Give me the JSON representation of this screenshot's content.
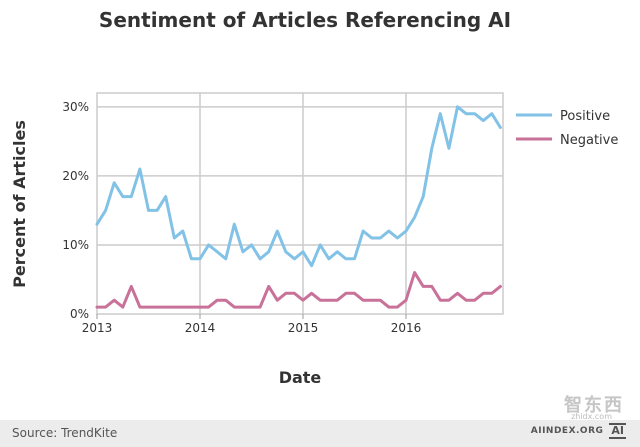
{
  "chart_data": {
    "type": "line",
    "title": "Sentiment of Articles Referencing AI",
    "xlabel": "Date",
    "ylabel": "Percent of Articles",
    "x_start_year": 2013,
    "x_ticks": [
      "2013",
      "2014",
      "2015",
      "2016"
    ],
    "y_ticks": [
      "0%",
      "10%",
      "20%",
      "30%"
    ],
    "ylim": [
      0,
      32
    ],
    "grid": true,
    "legend_position": "right",
    "series": [
      {
        "name": "Positive",
        "color": "#82c2e6",
        "values": [
          13,
          15,
          19,
          17,
          17,
          21,
          15,
          15,
          17,
          11,
          12,
          8,
          8,
          10,
          9,
          8,
          13,
          9,
          10,
          8,
          9,
          12,
          9,
          8,
          9,
          7,
          10,
          8,
          9,
          8,
          8,
          12,
          11,
          11,
          12,
          11,
          12,
          14,
          17,
          24,
          29,
          24,
          30,
          29,
          29,
          28,
          29,
          27
        ]
      },
      {
        "name": "Negative",
        "color": "#c8729a",
        "values": [
          1,
          1,
          2,
          1,
          4,
          1,
          1,
          1,
          1,
          1,
          1,
          1,
          1,
          1,
          2,
          2,
          1,
          1,
          1,
          1,
          4,
          2,
          3,
          3,
          2,
          3,
          2,
          2,
          2,
          3,
          3,
          2,
          2,
          2,
          1,
          1,
          2,
          6,
          4,
          4,
          2,
          2,
          3,
          2,
          2,
          3,
          3,
          4
        ]
      }
    ]
  },
  "footer": {
    "source": "Source: TrendKite",
    "brand_text": "AIINDEX.ORG",
    "brand_mark": "AI"
  },
  "watermark": {
    "main": "智东西",
    "sub": "zhidx.com"
  }
}
